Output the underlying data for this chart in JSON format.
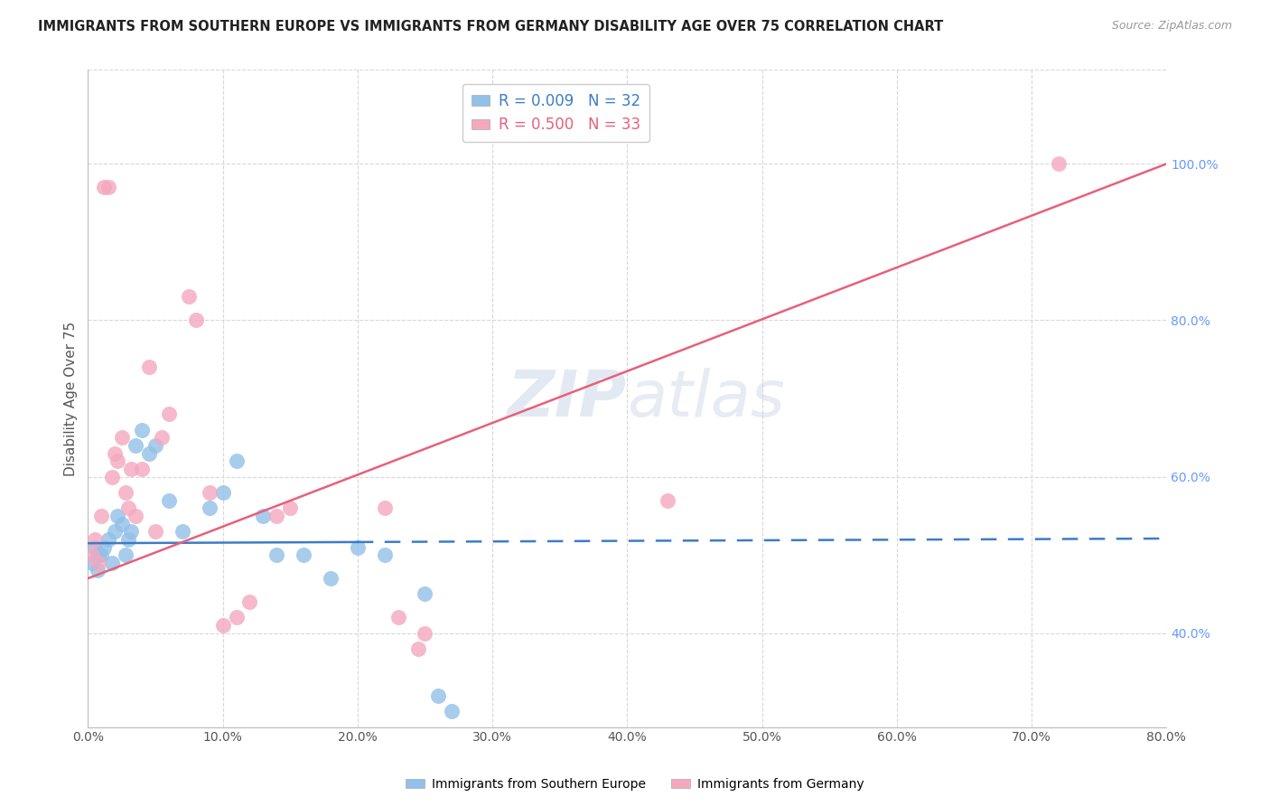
{
  "title": "IMMIGRANTS FROM SOUTHERN EUROPE VS IMMIGRANTS FROM GERMANY DISABILITY AGE OVER 75 CORRELATION CHART",
  "source": "Source: ZipAtlas.com",
  "ylabel": "Disability Age Over 75",
  "x_tick_labels": [
    "0.0%",
    "10.0%",
    "20.0%",
    "30.0%",
    "40.0%",
    "50.0%",
    "60.0%",
    "70.0%",
    "80.0%"
  ],
  "x_ticks": [
    0,
    10,
    20,
    30,
    40,
    50,
    60,
    70,
    80
  ],
  "y_tick_labels_right": [
    "40.0%",
    "60.0%",
    "80.0%",
    "100.0%"
  ],
  "y_ticks_right": [
    40,
    60,
    80,
    100
  ],
  "xlim": [
    0,
    80
  ],
  "ylim": [
    28,
    112
  ],
  "legend_blue_label": "R = 0.009   N = 32",
  "legend_pink_label": "R = 0.500   N = 33",
  "legend_bottom_blue": "Immigrants from Southern Europe",
  "legend_bottom_pink": "Immigrants from Germany",
  "blue_color": "#92c0e8",
  "pink_color": "#f4a8be",
  "blue_line_color": "#3c7cc8",
  "pink_line_color": "#e8607a",
  "watermark_zip": "ZIP",
  "watermark_atlas": "atlas",
  "bg_color": "#ffffff",
  "grid_color": "#d8d8d8",
  "blue_scatter_x": [
    0.3,
    0.5,
    0.7,
    0.8,
    1.0,
    1.2,
    1.5,
    1.8,
    2.0,
    2.2,
    2.5,
    2.8,
    3.0,
    3.2,
    3.5,
    4.0,
    4.5,
    5.0,
    6.0,
    7.0,
    9.0,
    10.0,
    11.0,
    13.0,
    14.0,
    16.0,
    18.0,
    20.0,
    22.0,
    25.0,
    26.0,
    27.0
  ],
  "blue_scatter_y": [
    49,
    51,
    48,
    50,
    50,
    51,
    52,
    49,
    53,
    55,
    54,
    50,
    52,
    53,
    64,
    66,
    63,
    64,
    57,
    53,
    56,
    58,
    62,
    55,
    50,
    50,
    47,
    51,
    50,
    45,
    32,
    30
  ],
  "pink_scatter_x": [
    0.3,
    0.5,
    0.8,
    1.0,
    1.2,
    1.5,
    1.8,
    2.0,
    2.2,
    2.5,
    2.8,
    3.0,
    3.2,
    3.5,
    4.0,
    4.5,
    5.0,
    5.5,
    6.0,
    7.5,
    8.0,
    9.0,
    10.0,
    11.0,
    12.0,
    14.0,
    15.0,
    22.0,
    23.0,
    24.5,
    25.0,
    43.0,
    72.0
  ],
  "pink_scatter_y": [
    50,
    52,
    49,
    55,
    97,
    97,
    60,
    63,
    62,
    65,
    58,
    56,
    61,
    55,
    61,
    74,
    53,
    65,
    68,
    83,
    80,
    58,
    41,
    42,
    44,
    55,
    56,
    56,
    42,
    38,
    40,
    57,
    100
  ],
  "blue_trendline_x": [
    0,
    20,
    80
  ],
  "blue_trendline_y": [
    51.5,
    51.8,
    52.1
  ],
  "blue_solid_end_x": 20,
  "pink_trendline_x0": 0,
  "pink_trendline_x1": 80,
  "pink_trendline_y0": 47,
  "pink_trendline_y1": 100
}
